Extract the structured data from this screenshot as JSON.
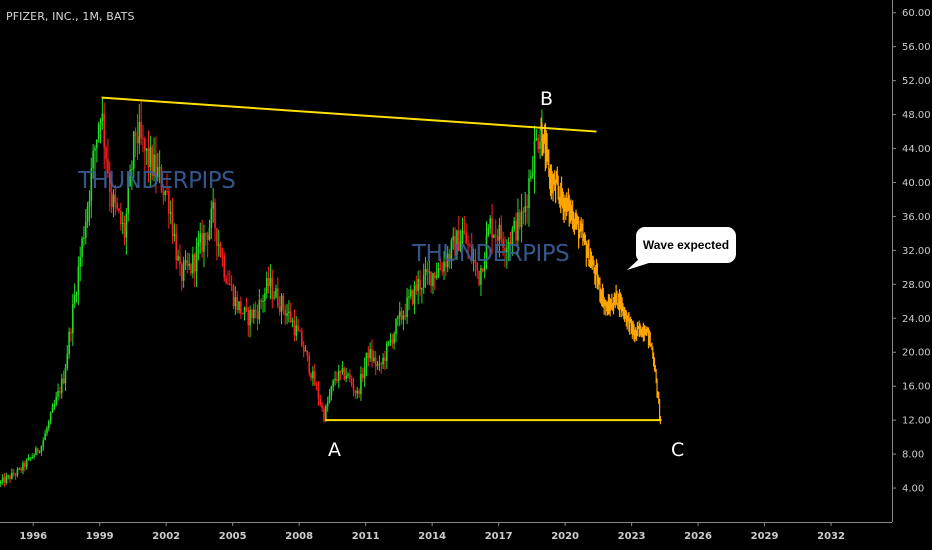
{
  "header": {
    "symbol": "PFIZER, INC., 1M, BATS"
  },
  "watermarks": [
    "THUNDERPIPS",
    "THUNDERPIPS"
  ],
  "callout": {
    "text": "Wave expected"
  },
  "wave_labels": {
    "a": "A",
    "b": "B",
    "c": "C"
  },
  "colors": {
    "background": "#000000",
    "up_candle": "#22dd22",
    "down_candle": "#ff2020",
    "projection": "#ffa500",
    "trendline": "#ffe000",
    "axis_text": "#cccccc"
  },
  "chart_data": {
    "type": "candlestick",
    "title": "",
    "xlabel": "",
    "ylabel": "",
    "x_ticks": [
      "1996",
      "1999",
      "2002",
      "2005",
      "2008",
      "2011",
      "2014",
      "2017",
      "2020",
      "2023",
      "2026",
      "2029",
      "2032"
    ],
    "y_ticks": [
      "4.00",
      "8.00",
      "12.00",
      "16.00",
      "20.00",
      "24.00",
      "28.00",
      "32.00",
      "36.00",
      "40.00",
      "44.00",
      "48.00",
      "52.00",
      "56.00",
      "60.00"
    ],
    "ylim": [
      0,
      61.5
    ],
    "xlim": [
      "1994-07",
      "2034-10"
    ],
    "price_path": [
      [
        "1994-07",
        4.5
      ],
      [
        "1995-06",
        6.0
      ],
      [
        "1996-06",
        9.0
      ],
      [
        "1997-06",
        17.0
      ],
      [
        "1998-06",
        36.0
      ],
      [
        "1999-02",
        49.0
      ],
      [
        "1999-08",
        38.0
      ],
      [
        "2000-03",
        34.0
      ],
      [
        "2000-09",
        46.0
      ],
      [
        "2001-03",
        43.0
      ],
      [
        "2001-09",
        41.0
      ],
      [
        "2002-03",
        38.0
      ],
      [
        "2002-09",
        29.0
      ],
      [
        "2003-03",
        30.0
      ],
      [
        "2003-09",
        33.0
      ],
      [
        "2004-03",
        36.0
      ],
      [
        "2004-09",
        30.0
      ],
      [
        "2005-03",
        26.0
      ],
      [
        "2005-09",
        24.0
      ],
      [
        "2006-03",
        25.0
      ],
      [
        "2006-09",
        28.0
      ],
      [
        "2007-03",
        26.0
      ],
      [
        "2007-09",
        24.0
      ],
      [
        "2008-03",
        21.0
      ],
      [
        "2008-09",
        17.0
      ],
      [
        "2009-03",
        12.5
      ],
      [
        "2009-09",
        17.0
      ],
      [
        "2010-03",
        17.5
      ],
      [
        "2010-09",
        15.0
      ],
      [
        "2011-03",
        20.0
      ],
      [
        "2011-09",
        18.0
      ],
      [
        "2012-06",
        23.0
      ],
      [
        "2013-06",
        28.0
      ],
      [
        "2014-06",
        30.0
      ],
      [
        "2015-06",
        34.0
      ],
      [
        "2016-03",
        29.0
      ],
      [
        "2016-09",
        35.0
      ],
      [
        "2017-06",
        33.0
      ],
      [
        "2018-03",
        36.0
      ],
      [
        "2018-08",
        43.0
      ],
      [
        "2018-12",
        46.5
      ]
    ],
    "projection_path": [
      [
        "2018-12",
        46.5
      ],
      [
        "2019-06",
        40.0
      ],
      [
        "2019-12",
        38.0
      ],
      [
        "2020-06",
        36.0
      ],
      [
        "2021-03",
        31.0
      ],
      [
        "2021-12",
        25.0
      ],
      [
        "2022-06",
        26.5
      ],
      [
        "2023-03",
        22.0
      ],
      [
        "2023-09",
        23.0
      ],
      [
        "2024-01",
        20.0
      ],
      [
        "2024-05",
        12.0
      ]
    ],
    "trendlines": [
      {
        "from": [
          "1999-02",
          50.0
        ],
        "to": [
          "2021-06",
          46.0
        ]
      },
      {
        "from": [
          "2009-03",
          12.0
        ],
        "to": [
          "2024-05",
          12.0
        ]
      }
    ],
    "wave_points": [
      {
        "label": "A",
        "x": "2009-03",
        "y": 12.0
      },
      {
        "label": "B",
        "x": "2018-12",
        "y": 46.5
      },
      {
        "label": "C",
        "x": "2024-05",
        "y": 12.0
      }
    ]
  }
}
